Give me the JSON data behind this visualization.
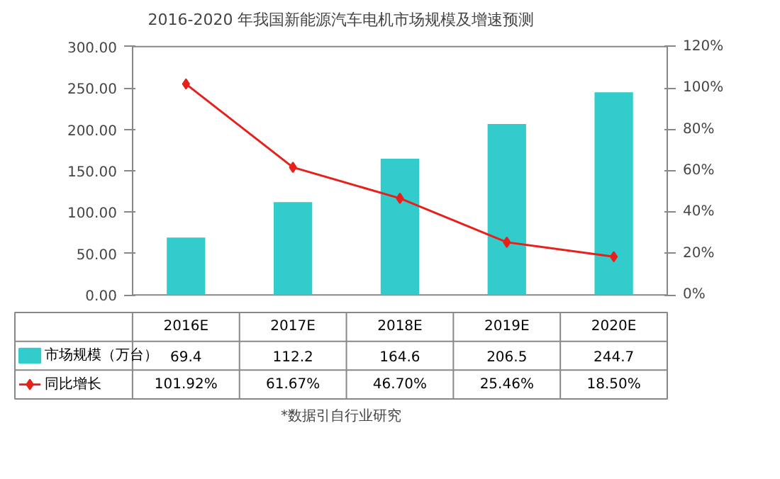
{
  "chart_data": {
    "type": "bar",
    "title": "2016-2020 年我国新能源汽车电机市场规模及增速预测",
    "categories": [
      "2016E",
      "2017E",
      "2018E",
      "2019E",
      "2020E"
    ],
    "series": [
      {
        "name": "市场规模（万台）",
        "color": "#33cccc",
        "values": [
          69.4,
          112.2,
          164.6,
          206.5,
          244.7
        ],
        "value_labels": [
          "69.4",
          "112.2",
          "164.6",
          "206.5",
          "244.7"
        ]
      },
      {
        "name": "同比增长",
        "type": "line",
        "axis": "y2",
        "color": "#e8201c",
        "marker": "diamond",
        "values": [
          101.92,
          61.67,
          46.7,
          25.46,
          18.5
        ],
        "value_labels": [
          "101.92%",
          "61.67%",
          "46.70%",
          "25.46%",
          "18.50%"
        ]
      }
    ],
    "ylim": [
      0,
      300
    ],
    "yticks": [
      {
        "value": 0,
        "label": "0.00"
      },
      {
        "value": 50,
        "label": "50.00"
      },
      {
        "value": 100,
        "label": "100.00"
      },
      {
        "value": 150,
        "label": "150.00"
      },
      {
        "value": 200,
        "label": "200.00"
      },
      {
        "value": 250,
        "label": "250.00"
      },
      {
        "value": 300,
        "label": "300.00"
      }
    ],
    "y2lim": [
      0,
      120
    ],
    "y2ticks": [
      {
        "value": 0,
        "label": "0%"
      },
      {
        "value": 20,
        "label": "20%"
      },
      {
        "value": 40,
        "label": "40%"
      },
      {
        "value": 60,
        "label": "60%"
      },
      {
        "value": 80,
        "label": "80%"
      },
      {
        "value": 100,
        "label": "100%"
      },
      {
        "value": 120,
        "label": "120%"
      }
    ],
    "legend": "bottom",
    "grid": false,
    "annotations": [
      "*数据引自行业研究"
    ]
  }
}
